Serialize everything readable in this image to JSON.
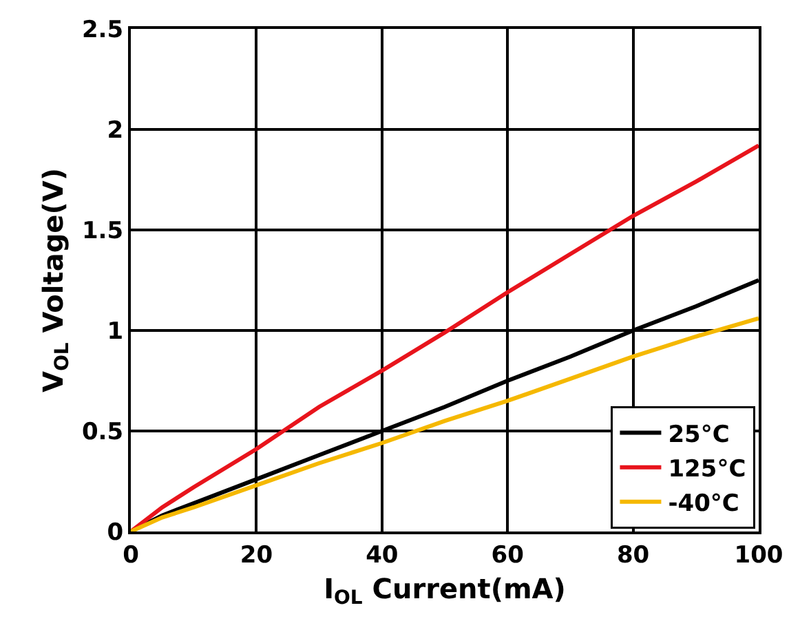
{
  "chart_data": {
    "type": "line",
    "xlabel": "I$_{OL}$ Current(mA)",
    "ylabel": "V$_{OL}$ Voltage(V)",
    "xlim": [
      0,
      100
    ],
    "xticks": [
      0,
      20,
      40,
      60,
      80,
      100
    ],
    "ylim": [
      0,
      2.5
    ],
    "yticks": [
      0,
      0.5,
      1,
      1.5,
      2,
      2.5
    ],
    "x": [
      0,
      5,
      10,
      20,
      30,
      40,
      50,
      60,
      70,
      80,
      90,
      100
    ],
    "series": [
      {
        "name": "25°C",
        "color": "#000000",
        "values": [
          0,
          0.08,
          0.14,
          0.26,
          0.38,
          0.5,
          0.62,
          0.75,
          0.87,
          1.0,
          1.12,
          1.25
        ]
      },
      {
        "name": "125°C",
        "color": "#e8141c",
        "values": [
          0,
          0.12,
          0.22,
          0.41,
          0.62,
          0.8,
          0.99,
          1.19,
          1.38,
          1.57,
          1.74,
          1.92
        ]
      },
      {
        "name": "-40°C",
        "color": "#f5b800",
        "values": [
          0,
          0.07,
          0.12,
          0.23,
          0.34,
          0.44,
          0.55,
          0.65,
          0.76,
          0.87,
          0.97,
          1.06
        ]
      }
    ],
    "grid": true,
    "legend": "bottom right",
    "marker": "none",
    "line_style": "solid"
  }
}
